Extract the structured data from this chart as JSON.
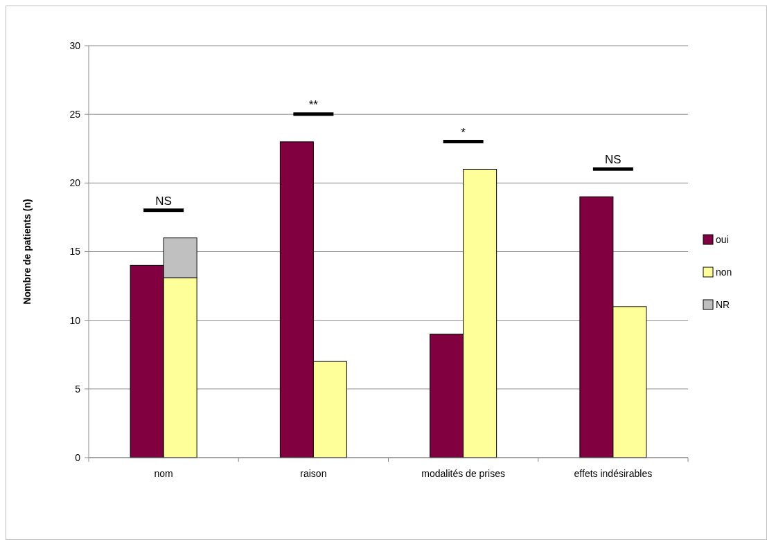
{
  "chart_data": {
    "type": "bar",
    "ylabel": "Nombre de patients (n)",
    "categories": [
      "nom",
      "raison",
      "modalités de prises",
      "effets indésirables"
    ],
    "series": [
      {
        "name": "oui",
        "color": "#800040",
        "values": [
          14,
          23,
          9,
          19
        ]
      },
      {
        "name": "non",
        "color": "#ffff99",
        "values": [
          13.1,
          7,
          21,
          11
        ]
      },
      {
        "name": "NR",
        "color": "#c0c0c0",
        "values": [
          2.9,
          null,
          null,
          null
        ],
        "base": [
          13.1,
          null,
          null,
          null
        ]
      }
    ],
    "ylim": [
      0,
      30
    ],
    "yticks": [
      0,
      5,
      10,
      15,
      20,
      25,
      30
    ],
    "grid": "y",
    "legend": "right",
    "annotations": [
      "NS",
      "**",
      "*",
      "NS"
    ]
  }
}
